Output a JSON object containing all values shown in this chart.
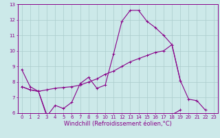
{
  "xlabel": "Windchill (Refroidissement éolien,°C)",
  "xlim": [
    -0.5,
    23.5
  ],
  "ylim": [
    6,
    13
  ],
  "xticks": [
    0,
    1,
    2,
    3,
    4,
    5,
    6,
    7,
    8,
    9,
    10,
    11,
    12,
    13,
    14,
    15,
    16,
    17,
    18,
    19,
    20,
    21,
    22,
    23
  ],
  "yticks": [
    6,
    7,
    8,
    9,
    10,
    11,
    12,
    13
  ],
  "bg_color": "#cce9e9",
  "grid_color": "#aacccc",
  "line_color": "#880088",
  "line1_y": [
    8.8,
    7.7,
    7.4,
    5.8,
    6.5,
    6.3,
    6.7,
    7.9,
    8.3,
    7.6,
    7.8,
    9.8,
    11.9,
    12.6,
    12.6,
    11.9,
    11.5,
    11.0,
    10.4,
    8.1,
    6.9,
    6.8,
    6.2,
    null
  ],
  "line2_y": [
    7.7,
    7.5,
    7.4,
    7.5,
    7.6,
    7.65,
    7.7,
    7.8,
    8.0,
    8.2,
    8.5,
    8.7,
    9.0,
    9.3,
    9.5,
    9.7,
    9.9,
    10.0,
    10.4,
    8.1,
    null,
    null,
    null,
    null
  ],
  "line3_y": [
    7.7,
    7.5,
    7.4,
    5.9,
    5.9,
    5.9,
    5.9,
    5.9,
    5.9,
    5.9,
    5.9,
    5.9,
    5.9,
    5.9,
    5.9,
    5.9,
    5.9,
    5.9,
    5.9,
    6.2,
    null,
    null,
    null,
    null
  ],
  "marker": "+",
  "markersize": 3,
  "linewidth": 0.8,
  "tick_fontsize": 5,
  "xlabel_fontsize": 6
}
